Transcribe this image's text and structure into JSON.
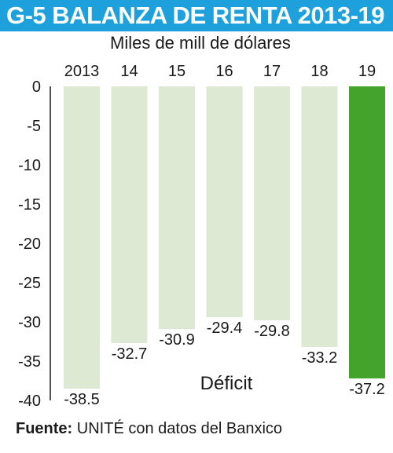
{
  "header": {
    "title": "G-5 BALANZA DE RENTA 2013-19",
    "subtitle": "Miles de mill de dólares"
  },
  "footer": {
    "source_label": "Fuente:",
    "source_text": "UNITÉ con datos del Banxico"
  },
  "colors": {
    "title_background": "#1ea0dc",
    "bar_default": "#dde9d2",
    "bar_highlight": "#43a32a"
  },
  "chart_data": {
    "type": "bar",
    "title": "G-5 BALANZA DE RENTA 2013-19",
    "subtitle": "Miles de mill de dólares",
    "categories": [
      "2013",
      "14",
      "15",
      "16",
      "17",
      "18",
      "19"
    ],
    "values": [
      -38.5,
      -32.7,
      -30.9,
      -29.4,
      -29.8,
      -33.2,
      -37.2
    ],
    "value_labels": [
      "-38.5",
      "-32.7",
      "-30.9",
      "-29.4",
      "-29.8",
      "-33.2",
      "-37.2"
    ],
    "highlight_index": 6,
    "ylim": [
      -40,
      0
    ],
    "yticks": [
      0,
      -5,
      -10,
      -15,
      -20,
      -25,
      -30,
      -35,
      -40
    ],
    "ytick_labels": [
      "0",
      "-5",
      "-10",
      "-15",
      "-20",
      "-25",
      "-30",
      "-35",
      "-40"
    ],
    "category_axis_position": "top",
    "annotation": "Déficit",
    "grid": false,
    "legend": "none"
  }
}
